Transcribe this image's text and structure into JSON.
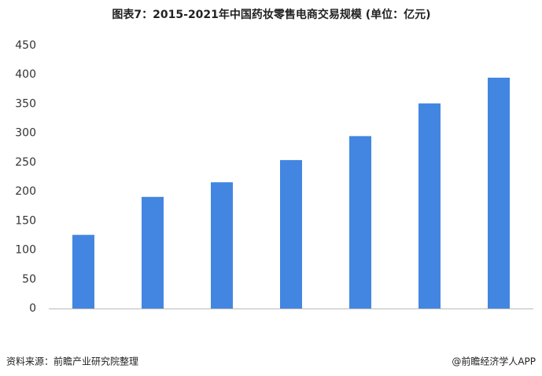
{
  "chart_data": {
    "type": "bar",
    "title": "图表7：2015-2021年中国药妆零售电商交易规模 (单位：亿元)",
    "values": [
      126,
      191,
      216,
      254,
      295,
      351,
      395
    ],
    "color": "#4386e1",
    "ylim": [
      0,
      450
    ],
    "yticks": [
      0,
      50,
      100,
      150,
      200,
      250,
      300,
      350,
      400,
      450
    ],
    "grid": false,
    "source": "资料来源：前瞻产业研究院整理",
    "credit": "@前瞻经济学人APP"
  }
}
